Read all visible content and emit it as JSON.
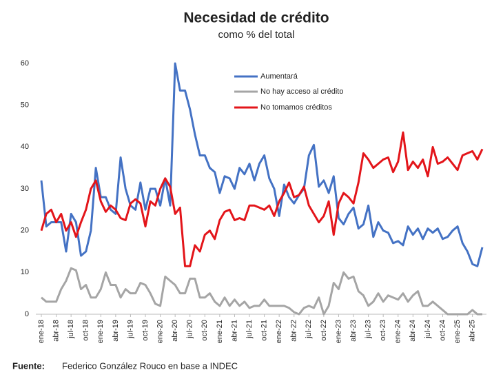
{
  "chart_data": {
    "type": "line",
    "title": "Necesidad de crédito",
    "subtitle": "como % del total",
    "source_label": "Fuente:",
    "source": "Federico González Rouco en base a INDEC",
    "categories": [
      "ene-18",
      null,
      null,
      "abr-18",
      null,
      null,
      "jul-18",
      null,
      null,
      "oct-18",
      null,
      null,
      "ene-19",
      null,
      null,
      "abr-19",
      null,
      null,
      "jul-19",
      null,
      null,
      "oct-19",
      null,
      null,
      "ene-20",
      null,
      null,
      "abr-20",
      null,
      null,
      "jul-20",
      null,
      null,
      "oct-20",
      null,
      null,
      "ene-21",
      null,
      null,
      "abr-21",
      null,
      null,
      "jul-21",
      null,
      null,
      "oct-21",
      null,
      null,
      "ene-22",
      null,
      null,
      "abr-22",
      null,
      null,
      "jul-22",
      null,
      null,
      "oct-22",
      null,
      null,
      "ene-23",
      null,
      null,
      "abr-23",
      null,
      null,
      "jul-23",
      null,
      null,
      "oct-23",
      null,
      null,
      "ene-24",
      null,
      null,
      "abr-24",
      null,
      null,
      "jul-24",
      null,
      null,
      "oct-24",
      null,
      null,
      "ene-25",
      null,
      null,
      "abr-25",
      null,
      null
    ],
    "series": [
      {
        "name": "Aumentará",
        "color": "#4472c4",
        "values": [
          32,
          21,
          22,
          22,
          22,
          15,
          24,
          22,
          14,
          15,
          20,
          35,
          28,
          28,
          25,
          24,
          37.5,
          30,
          26,
          25,
          31.5,
          25,
          30,
          30,
          26,
          32.5,
          26,
          60,
          53.5,
          53.5,
          49,
          43,
          38,
          38,
          35,
          34,
          29,
          33,
          32.5,
          30,
          35,
          33.5,
          36,
          32,
          36,
          38,
          32.5,
          30,
          23.5,
          31,
          28,
          26.5,
          28.5,
          30,
          38,
          40.5,
          30.5,
          32,
          29,
          33,
          23,
          21.5,
          24,
          25.5,
          20.5,
          21.5,
          26,
          18.5,
          22,
          20,
          19.5,
          17,
          17.5,
          16.5,
          21,
          19,
          20.5,
          18,
          20.5,
          19.5,
          20.5,
          18,
          18.5,
          20,
          21,
          17,
          15,
          12,
          11.5,
          16
        ]
      },
      {
        "name": "No hay acceso al crédito",
        "color": "#a5a5a5",
        "values": [
          4,
          3,
          3,
          3,
          6,
          8,
          11,
          10.5,
          6,
          7,
          4,
          4,
          6,
          10,
          7,
          7,
          4,
          6,
          5,
          5,
          7.5,
          7,
          5,
          2.5,
          2,
          9,
          8,
          7,
          5,
          5,
          8.5,
          8.5,
          4,
          4,
          5,
          3,
          2,
          4,
          2,
          3.5,
          2,
          3,
          1.5,
          2,
          2,
          3.5,
          2,
          2,
          2,
          2,
          1.5,
          0.5,
          0,
          1.5,
          2,
          1.5,
          4,
          0,
          2,
          7.5,
          6,
          10,
          8.5,
          9,
          5.5,
          4.5,
          2,
          3,
          5,
          3,
          4.5,
          4,
          3.5,
          5,
          3,
          4.5,
          5.5,
          2,
          2,
          3,
          2,
          1,
          0,
          0,
          0,
          0,
          0,
          1,
          0,
          0
        ]
      },
      {
        "name": "No tomamos créditos",
        "color": "#e3151a",
        "values": [
          20,
          24,
          25,
          22,
          24,
          20,
          22,
          18.5,
          22,
          25,
          30,
          32,
          27,
          24.5,
          26,
          25,
          23,
          22.5,
          26.5,
          27.5,
          26.5,
          21,
          27,
          26,
          30,
          32.5,
          30.5,
          24,
          25.5,
          11.5,
          11.5,
          16.5,
          15,
          19,
          20,
          18,
          22.5,
          24.5,
          25,
          22.5,
          23,
          22.5,
          26,
          26,
          25.5,
          25,
          26,
          23.5,
          27,
          29,
          31.5,
          28,
          28.5,
          30.5,
          26,
          24,
          22,
          23.5,
          27,
          19,
          26.5,
          29,
          28,
          26.5,
          31.5,
          38.5,
          37,
          35,
          36,
          37,
          37.5,
          34,
          36.5,
          43.5,
          34.5,
          36.5,
          35,
          37,
          33,
          40,
          36,
          36.5,
          37.5,
          36,
          34.5,
          38,
          38.5,
          39,
          37,
          39.5
        ]
      }
    ],
    "ylim": [
      0,
      60
    ],
    "yticks": [
      0,
      10,
      20,
      30,
      40,
      50,
      60
    ],
    "grid": false
  }
}
